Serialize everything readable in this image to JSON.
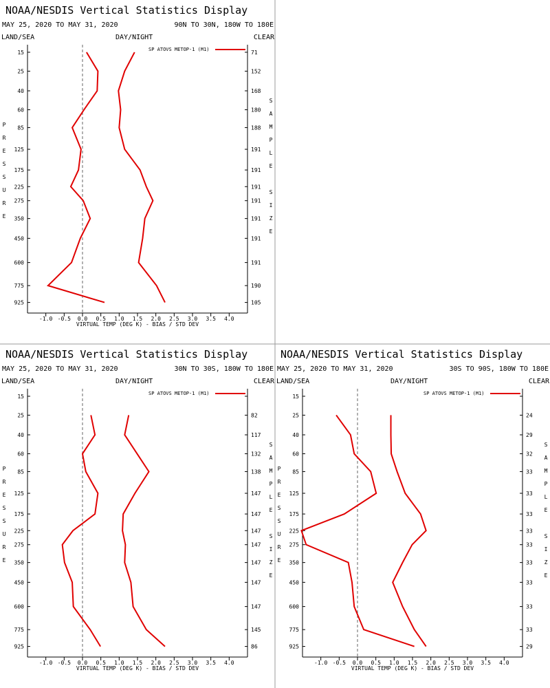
{
  "chart_data": [
    {
      "type": "line",
      "title": "NOAA/NESDIS Vertical Statistics Display",
      "subtitle": "MAY 25, 2020 TO MAY 31, 2020",
      "region": "90N TO 30N, 180W TO 180E",
      "land_sea": "LAND/SEA",
      "day_night": "DAY/NIGHT",
      "sky": "CLEAR",
      "xlabel": "VIRTUAL TEMP (DEG K) - BIAS / STD DEV",
      "ylabel": "PRESSURE",
      "y2label": "SAMPLE SIZE",
      "xlim": [
        -1.5,
        4.5
      ],
      "xticks": [
        {
          "value": -1,
          "label": "-1.0"
        },
        -0.5,
        {
          "value": 0,
          "label": "0.0"
        },
        0.5,
        {
          "value": 1,
          "label": "1.0"
        },
        1.5,
        {
          "value": 2,
          "label": "2.0"
        },
        2.5,
        {
          "value": 3,
          "label": "3.0"
        },
        3.5,
        {
          "value": 4,
          "label": "4.0"
        }
      ],
      "ylim": [
        1030,
        12
      ],
      "yscale": "fourth-root",
      "y": [
        15,
        25,
        40,
        60,
        85,
        125,
        175,
        225,
        275,
        350,
        450,
        600,
        775,
        925
      ],
      "yticks": [
        15,
        25,
        40,
        60,
        85,
        125,
        175,
        225,
        275,
        350,
        450,
        600,
        775,
        925
      ],
      "sample_size": [
        71,
        152,
        168,
        180,
        188,
        191,
        191,
        191,
        191,
        191,
        191,
        191,
        190,
        105
      ],
      "series": [
        {
          "name": "SP ATOVS METOP-1 (M1)",
          "color": "#e00000",
          "values": [
            0.11,
            0.42,
            0.4,
            0.04,
            -0.28,
            -0.04,
            -0.11,
            -0.32,
            0.02,
            0.21,
            -0.06,
            -0.3,
            -0.94,
            0.6
          ],
          "std_dev": [
            1.42,
            1.15,
            0.98,
            1.04,
            1.0,
            1.15,
            1.57,
            1.74,
            1.92,
            1.7,
            1.64,
            1.53,
            2.02,
            2.25
          ]
        }
      ]
    },
    {
      "type": "line",
      "title": "NOAA/NESDIS Vertical Statistics Display",
      "subtitle": "MAY 25, 2020 TO MAY 31, 2020",
      "region": "30N TO 30S, 180W TO 180E",
      "land_sea": "LAND/SEA",
      "day_night": "DAY/NIGHT",
      "sky": "CLEAR",
      "xlabel": "VIRTUAL TEMP (DEG K) - BIAS / STD DEV",
      "ylabel": "PRESSURE",
      "y2label": "SAMPLE SIZE",
      "xlim": [
        -1.5,
        4.5
      ],
      "xticks": [
        {
          "value": -1,
          "label": "-1.0"
        },
        -0.5,
        {
          "value": 0,
          "label": "0.0"
        },
        0.5,
        {
          "value": 1,
          "label": "1.0"
        },
        1.5,
        {
          "value": 2,
          "label": "2.0"
        },
        2.5,
        {
          "value": 3,
          "label": "3.0"
        },
        3.5,
        {
          "value": 4,
          "label": "4.0"
        }
      ],
      "ylim": [
        1030,
        12
      ],
      "yscale": "fourth-root",
      "y": [
        15,
        25,
        40,
        60,
        85,
        125,
        175,
        225,
        275,
        350,
        450,
        600,
        775,
        925
      ],
      "yticks": [
        15,
        25,
        40,
        60,
        85,
        125,
        175,
        225,
        275,
        350,
        450,
        600,
        775,
        925
      ],
      "sample_size": [
        null,
        82,
        117,
        132,
        138,
        147,
        147,
        147,
        147,
        147,
        147,
        147,
        145,
        86
      ],
      "series": [
        {
          "name": "SP ATOVS METOP-1 (M1)",
          "color": "#e00000",
          "values": [
            null,
            0.23,
            0.34,
            0.0,
            0.09,
            0.42,
            0.34,
            -0.26,
            -0.55,
            -0.49,
            -0.28,
            -0.25,
            0.21,
            0.49
          ],
          "std_dev": [
            null,
            1.26,
            1.15,
            1.49,
            1.81,
            1.43,
            1.11,
            1.09,
            1.17,
            1.15,
            1.32,
            1.38,
            1.74,
            2.25
          ]
        }
      ]
    },
    {
      "type": "line",
      "title": "NOAA/NESDIS Vertical Statistics Display",
      "subtitle": "MAY 25, 2020 TO MAY 31, 2020",
      "region": "30S TO 90S, 180W TO 180E",
      "land_sea": "LAND/SEA",
      "day_night": "DAY/NIGHT",
      "sky": "CLEAR",
      "xlabel": "VIRTUAL TEMP (DEG K) - BIAS / STD DEV",
      "ylabel": "PRESSURE",
      "y2label": "SAMPLE SIZE",
      "xlim": [
        -1.5,
        4.5
      ],
      "xticks": [
        {
          "value": -1,
          "label": "-1.0"
        },
        -0.5,
        {
          "value": 0,
          "label": "0.0"
        },
        0.5,
        {
          "value": 1,
          "label": "1.0"
        },
        1.5,
        {
          "value": 2,
          "label": "2.0"
        },
        2.5,
        {
          "value": 3,
          "label": "3.0"
        },
        3.5,
        {
          "value": 4,
          "label": "4.0"
        }
      ],
      "ylim": [
        1030,
        12
      ],
      "yscale": "fourth-root",
      "y": [
        15,
        25,
        40,
        60,
        85,
        125,
        175,
        225,
        275,
        350,
        450,
        600,
        775,
        925
      ],
      "yticks": [
        15,
        25,
        40,
        60,
        85,
        125,
        175,
        225,
        275,
        350,
        450,
        600,
        775,
        925
      ],
      "sample_size": [
        null,
        24,
        29,
        32,
        33,
        33,
        33,
        33,
        33,
        33,
        33,
        33,
        33,
        29
      ],
      "series": [
        {
          "name": "SP ATOVS METOP-1 (M1)",
          "color": "#e00000",
          "values": [
            null,
            -0.58,
            -0.19,
            -0.09,
            0.36,
            0.51,
            -0.36,
            -1.53,
            -1.4,
            -0.25,
            -0.15,
            -0.09,
            0.17,
            1.55
          ],
          "std_dev": [
            null,
            0.91,
            0.91,
            0.92,
            1.08,
            1.3,
            1.72,
            1.87,
            1.49,
            1.23,
            0.96,
            1.23,
            1.55,
            1.87
          ]
        }
      ]
    }
  ]
}
